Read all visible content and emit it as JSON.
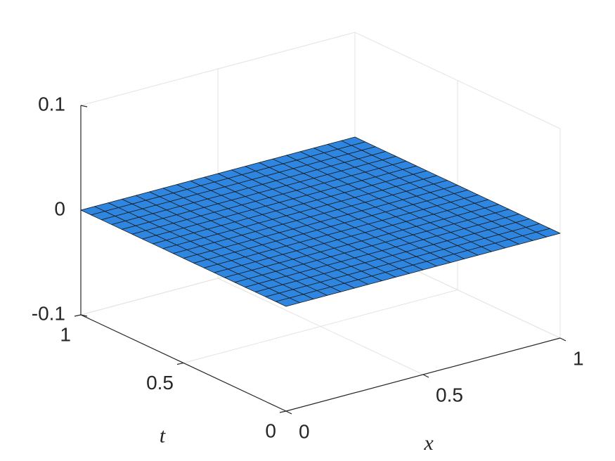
{
  "chart_data": {
    "type": "surface",
    "xlabel": "x",
    "ylabel": "t",
    "x": [
      0,
      0.05,
      0.1,
      0.15,
      0.2,
      0.25,
      0.3,
      0.35,
      0.4,
      0.45,
      0.5,
      0.55,
      0.6,
      0.65,
      0.7,
      0.75,
      0.8,
      0.85,
      0.9,
      0.95,
      1
    ],
    "y": [
      0,
      0.05,
      0.1,
      0.15,
      0.2,
      0.25,
      0.3,
      0.35,
      0.4,
      0.45,
      0.5,
      0.55,
      0.6,
      0.65,
      0.7,
      0.75,
      0.8,
      0.85,
      0.9,
      0.95,
      1
    ],
    "z": [
      [
        0,
        0,
        0,
        0,
        0,
        0,
        0,
        0,
        0,
        0,
        0,
        0,
        0,
        0,
        0,
        0,
        0,
        0,
        0,
        0,
        0
      ],
      [
        0,
        0,
        0,
        0,
        0,
        0,
        0,
        0,
        0,
        0,
        0,
        0,
        0,
        0,
        0,
        0,
        0,
        0,
        0,
        0,
        0
      ],
      [
        0,
        0,
        0,
        0,
        0,
        0,
        0,
        0,
        0,
        0,
        0,
        0,
        0,
        0,
        0,
        0,
        0,
        0,
        0,
        0,
        0
      ],
      [
        0,
        0,
        0,
        0,
        0,
        0,
        0,
        0,
        0,
        0,
        0,
        0,
        0,
        0,
        0,
        0,
        0,
        0,
        0,
        0,
        0
      ],
      [
        0,
        0,
        0,
        0,
        0,
        0,
        0,
        0,
        0,
        0,
        0,
        0,
        0,
        0,
        0,
        0,
        0,
        0,
        0,
        0,
        0
      ],
      [
        0,
        0,
        0,
        0,
        0,
        0,
        0,
        0,
        0,
        0,
        0,
        0,
        0,
        0,
        0,
        0,
        0,
        0,
        0,
        0,
        0
      ],
      [
        0,
        0,
        0,
        0,
        0,
        0,
        0,
        0,
        0,
        0,
        0,
        0,
        0,
        0,
        0,
        0,
        0,
        0,
        0,
        0,
        0
      ],
      [
        0,
        0,
        0,
        0,
        0,
        0,
        0,
        0,
        0,
        0,
        0,
        0,
        0,
        0,
        0,
        0,
        0,
        0,
        0,
        0,
        0
      ],
      [
        0,
        0,
        0,
        0,
        0,
        0,
        0,
        0,
        0,
        0,
        0,
        0,
        0,
        0,
        0,
        0,
        0,
        0,
        0,
        0,
        0
      ],
      [
        0,
        0,
        0,
        0,
        0,
        0,
        0,
        0,
        0,
        0,
        0,
        0,
        0,
        0,
        0,
        0,
        0,
        0,
        0,
        0,
        0
      ],
      [
        0,
        0,
        0,
        0,
        0,
        0,
        0,
        0,
        0,
        0,
        0,
        0,
        0,
        0,
        0,
        0,
        0,
        0,
        0,
        0,
        0
      ],
      [
        0,
        0,
        0,
        0,
        0,
        0,
        0,
        0,
        0,
        0,
        0,
        0,
        0,
        0,
        0,
        0,
        0,
        0,
        0,
        0,
        0
      ],
      [
        0,
        0,
        0,
        0,
        0,
        0,
        0,
        0,
        0,
        0,
        0,
        0,
        0,
        0,
        0,
        0,
        0,
        0,
        0,
        0,
        0
      ],
      [
        0,
        0,
        0,
        0,
        0,
        0,
        0,
        0,
        0,
        0,
        0,
        0,
        0,
        0,
        0,
        0,
        0,
        0,
        0,
        0,
        0
      ],
      [
        0,
        0,
        0,
        0,
        0,
        0,
        0,
        0,
        0,
        0,
        0,
        0,
        0,
        0,
        0,
        0,
        0,
        0,
        0,
        0,
        0
      ],
      [
        0,
        0,
        0,
        0,
        0,
        0,
        0,
        0,
        0,
        0,
        0,
        0,
        0,
        0,
        0,
        0,
        0,
        0,
        0,
        0,
        0
      ],
      [
        0,
        0,
        0,
        0,
        0,
        0,
        0,
        0,
        0,
        0,
        0,
        0,
        0,
        0,
        0,
        0,
        0,
        0,
        0,
        0,
        0
      ],
      [
        0,
        0,
        0,
        0,
        0,
        0,
        0,
        0,
        0,
        0,
        0,
        0,
        0,
        0,
        0,
        0,
        0,
        0,
        0,
        0,
        0
      ],
      [
        0,
        0,
        0,
        0,
        0,
        0,
        0,
        0,
        0,
        0,
        0,
        0,
        0,
        0,
        0,
        0,
        0,
        0,
        0,
        0,
        0
      ],
      [
        0,
        0,
        0,
        0,
        0,
        0,
        0,
        0,
        0,
        0,
        0,
        0,
        0,
        0,
        0,
        0,
        0,
        0,
        0,
        0,
        0
      ],
      [
        0,
        0,
        0,
        0,
        0,
        0,
        0,
        0,
        0,
        0,
        0,
        0,
        0,
        0,
        0,
        0,
        0,
        0,
        0,
        0,
        0
      ]
    ],
    "color": "#2e86e0",
    "xlim": [
      0,
      1
    ],
    "ylim": [
      0,
      1
    ],
    "zlim": [
      -0.1,
      0.1
    ],
    "xticks": [
      0,
      0.5,
      1
    ],
    "yticks": [
      0,
      0.5,
      1
    ],
    "zticks": [
      -0.1,
      0,
      0.1
    ],
    "grid": true
  }
}
